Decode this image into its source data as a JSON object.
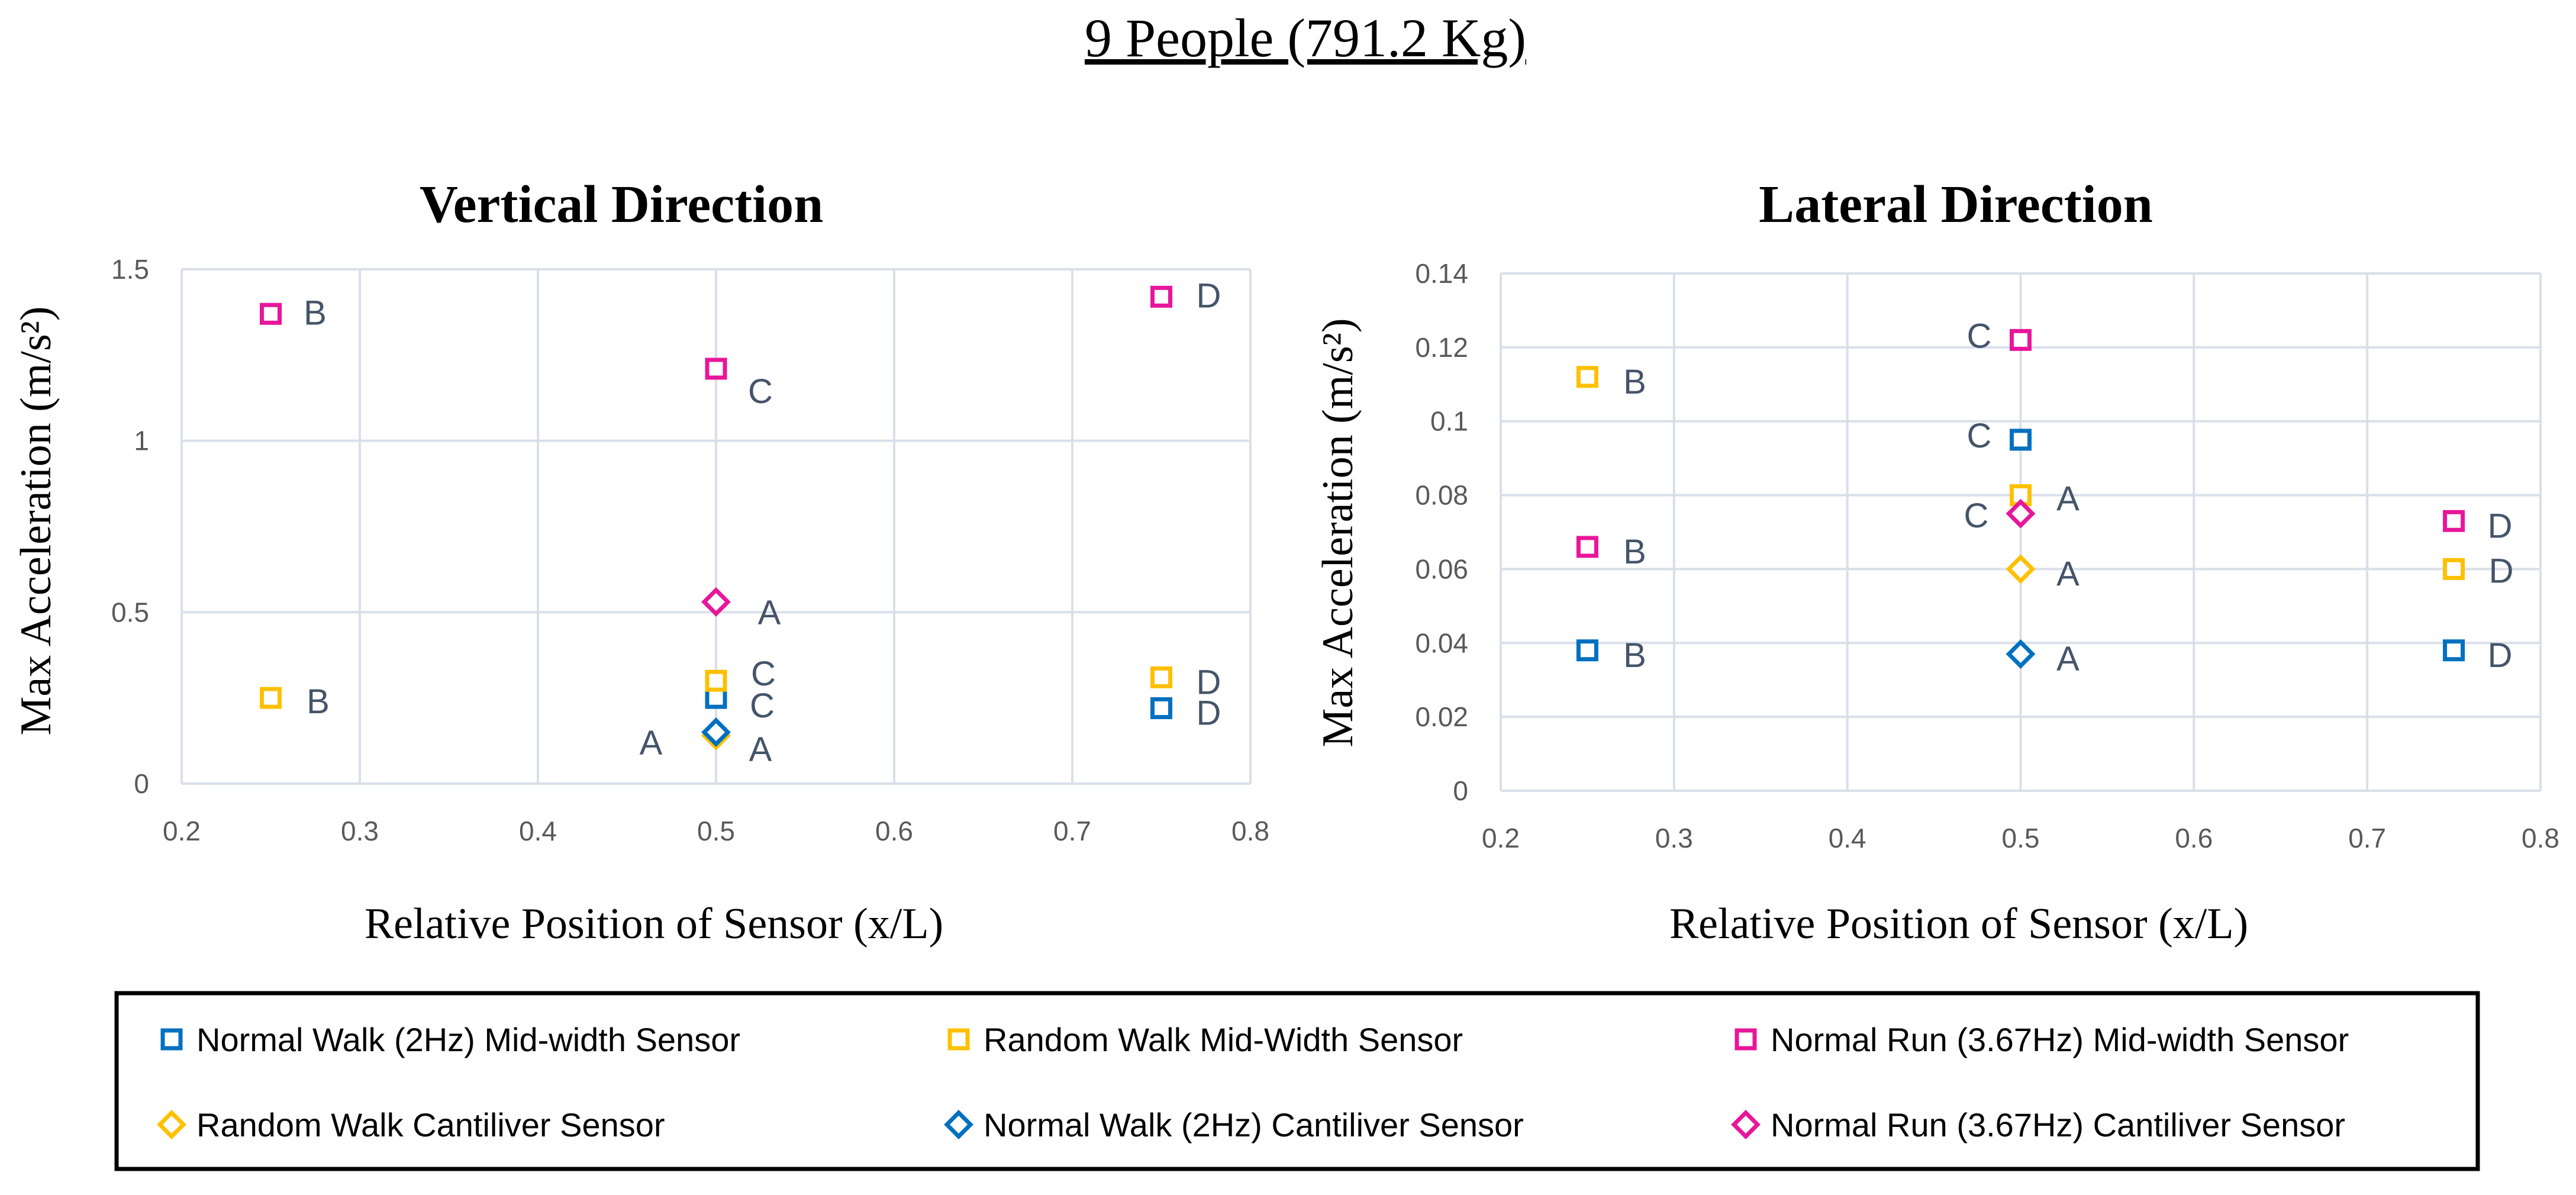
{
  "figure_title": "9 People (791.2 Kg)",
  "colors": {
    "blue": "#0070C0",
    "orange": "#FFC000",
    "magenta": "#E8169A",
    "axis_text": "#595959",
    "point_label": "#44546A",
    "grid": "#D9DFEA",
    "text": "#000000"
  },
  "series_legend": [
    {
      "key": "nw_mid",
      "name": "Normal Walk (2Hz) Mid-width Sensor",
      "color": "#0070C0",
      "marker": "square"
    },
    {
      "key": "rw_mid",
      "name": "Random Walk Mid-Width Sensor",
      "color": "#FFC000",
      "marker": "square"
    },
    {
      "key": "nr_mid",
      "name": "Normal Run (3.67Hz) Mid-width Sensor",
      "color": "#E8169A",
      "marker": "square"
    },
    {
      "key": "rw_cant",
      "name": "Random Walk Cantiliver Sensor",
      "color": "#FFC000",
      "marker": "diamond"
    },
    {
      "key": "nw_cant",
      "name": "Normal Walk (2Hz) Cantiliver Sensor",
      "color": "#0070C0",
      "marker": "diamond"
    },
    {
      "key": "nr_cant",
      "name": "Normal Run (3.67Hz) Cantiliver Sensor",
      "color": "#E8169A",
      "marker": "diamond"
    }
  ],
  "chart_data": [
    {
      "type": "scatter",
      "title": "Vertical Direction",
      "xlabel": "Relative Position of Sensor (x/L)",
      "ylabel": "Max Acceleration (m/s²)",
      "xlim": [
        0.2,
        0.8
      ],
      "ylim": [
        0,
        1.5
      ],
      "xticks": [
        0.2,
        0.3,
        0.4,
        0.5,
        0.6,
        0.7,
        0.8
      ],
      "xtick_labels": [
        "0.2",
        "0.3",
        "0.4",
        "0.5",
        "0.6",
        "0.7",
        "0.8"
      ],
      "yticks": [
        0,
        0.5,
        1,
        1.5
      ],
      "ytick_labels": [
        "0",
        "0.5",
        "1",
        "1.5"
      ],
      "grid": true,
      "series": [
        {
          "key": "nw_mid",
          "points": [
            {
              "x": 0.5,
              "y": 0.25,
              "label": "C"
            },
            {
              "x": 0.75,
              "y": 0.22,
              "label": "D"
            }
          ]
        },
        {
          "key": "rw_mid",
          "points": [
            {
              "x": 0.25,
              "y": 0.25,
              "label": "B"
            },
            {
              "x": 0.5,
              "y": 0.3,
              "label": "C"
            },
            {
              "x": 0.75,
              "y": 0.31,
              "label": "D"
            }
          ]
        },
        {
          "key": "nr_mid",
          "points": [
            {
              "x": 0.25,
              "y": 1.37,
              "label": "B"
            },
            {
              "x": 0.5,
              "y": 1.21,
              "label": "C"
            },
            {
              "x": 0.75,
              "y": 1.42,
              "label": "D"
            }
          ]
        },
        {
          "key": "rw_cant",
          "points": [
            {
              "x": 0.5,
              "y": 0.14,
              "label": "A"
            }
          ]
        },
        {
          "key": "nw_cant",
          "points": [
            {
              "x": 0.5,
              "y": 0.15,
              "label": "A"
            }
          ]
        },
        {
          "key": "nr_cant",
          "points": [
            {
              "x": 0.5,
              "y": 0.53,
              "label": "A"
            }
          ]
        }
      ]
    },
    {
      "type": "scatter",
      "title": "Lateral Direction",
      "xlabel": "Relative Position of Sensor (x/L)",
      "ylabel": "Max Acceleration (m/s²)",
      "xlim": [
        0.2,
        0.8
      ],
      "ylim": [
        0,
        0.14
      ],
      "xticks": [
        0.2,
        0.3,
        0.4,
        0.5,
        0.6,
        0.7,
        0.8
      ],
      "xtick_labels": [
        "0.2",
        "0.3",
        "0.4",
        "0.5",
        "0.6",
        "0.7",
        "0.8"
      ],
      "yticks": [
        0,
        0.02,
        0.04,
        0.06,
        0.08,
        0.1,
        0.12,
        0.14
      ],
      "ytick_labels": [
        "0",
        "0.02",
        "0.04",
        "0.06",
        "0.08",
        "0.1",
        "0.12",
        "0.14"
      ],
      "grid": true,
      "series": [
        {
          "key": "nw_mid",
          "points": [
            {
              "x": 0.25,
              "y": 0.038,
              "label": "B"
            },
            {
              "x": 0.5,
              "y": 0.095,
              "label": "C"
            },
            {
              "x": 0.75,
              "y": 0.038,
              "label": "D"
            }
          ]
        },
        {
          "key": "rw_mid",
          "points": [
            {
              "x": 0.25,
              "y": 0.112,
              "label": "B"
            },
            {
              "x": 0.5,
              "y": 0.08,
              "label": "A"
            },
            {
              "x": 0.75,
              "y": 0.06,
              "label": "D"
            }
          ]
        },
        {
          "key": "nr_mid",
          "points": [
            {
              "x": 0.25,
              "y": 0.066,
              "label": "B"
            },
            {
              "x": 0.5,
              "y": 0.122,
              "label": "C"
            },
            {
              "x": 0.75,
              "y": 0.073,
              "label": "D"
            }
          ]
        },
        {
          "key": "rw_cant",
          "points": [
            {
              "x": 0.5,
              "y": 0.06,
              "label": "A"
            }
          ]
        },
        {
          "key": "nw_cant",
          "points": [
            {
              "x": 0.5,
              "y": 0.037,
              "label": "A"
            }
          ]
        },
        {
          "key": "nr_cant",
          "points": [
            {
              "x": 0.5,
              "y": 0.075,
              "label": "C"
            }
          ]
        }
      ]
    }
  ]
}
